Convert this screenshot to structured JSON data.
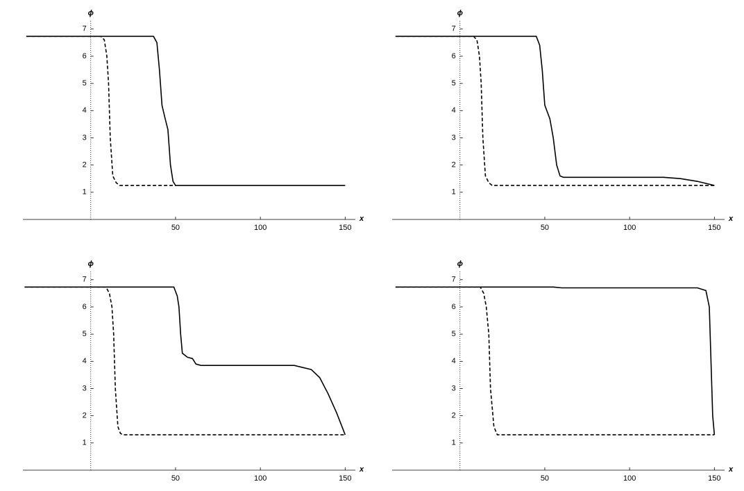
{
  "chart_data": [
    {
      "type": "line",
      "xlabel": "x",
      "ylabel": "ϕ",
      "xlim": [
        -40,
        156
      ],
      "ylim": [
        0,
        7.3
      ],
      "xticks": [
        50,
        100,
        150
      ],
      "yticks": [
        1,
        2,
        3,
        4,
        5,
        6,
        7
      ],
      "series": [
        {
          "color": "#000000",
          "dashed": false,
          "x": [
            -38,
            37,
            39,
            40.5,
            42,
            43.5,
            45.5,
            47,
            48.5,
            50,
            150
          ],
          "values": [
            6.73,
            6.73,
            6.5,
            5.5,
            4.2,
            3.8,
            3.3,
            2.0,
            1.4,
            1.25,
            1.25
          ]
        },
        {
          "color": "#000000",
          "dashed": true,
          "x": [
            -38,
            6,
            8,
            9.5,
            10.5,
            11.5,
            13,
            15,
            17,
            50
          ],
          "values": [
            6.73,
            6.73,
            6.6,
            6.0,
            5.0,
            3.0,
            1.6,
            1.35,
            1.25,
            1.25
          ]
        }
      ]
    },
    {
      "type": "line",
      "xlabel": "x",
      "ylabel": "ϕ",
      "xlim": [
        -40,
        156
      ],
      "ylim": [
        0,
        7.3
      ],
      "xticks": [
        50,
        100,
        150
      ],
      "yticks": [
        1,
        2,
        3,
        4,
        5,
        6,
        7
      ],
      "series": [
        {
          "color": "#000000",
          "dashed": false,
          "x": [
            -38,
            45,
            47,
            48.5,
            50,
            53,
            55,
            57,
            59,
            61,
            120,
            130,
            140,
            150
          ],
          "values": [
            6.73,
            6.73,
            6.4,
            5.5,
            4.2,
            3.7,
            3.0,
            2.0,
            1.6,
            1.55,
            1.55,
            1.5,
            1.4,
            1.25
          ]
        },
        {
          "color": "#000000",
          "dashed": true,
          "x": [
            -38,
            8,
            10,
            11.5,
            12.5,
            13.5,
            15,
            17,
            19,
            150
          ],
          "values": [
            6.73,
            6.73,
            6.6,
            6.0,
            5.0,
            3.0,
            1.6,
            1.35,
            1.25,
            1.25
          ]
        }
      ]
    },
    {
      "type": "line",
      "xlabel": "x",
      "ylabel": "ϕ",
      "xlim": [
        -40,
        156
      ],
      "ylim": [
        0,
        7.3
      ],
      "xticks": [
        50,
        100,
        150
      ],
      "yticks": [
        1,
        2,
        3,
        4,
        5,
        6,
        7
      ],
      "series": [
        {
          "color": "#000000",
          "dashed": false,
          "x": [
            -39,
            49,
            51,
            52,
            53,
            54,
            57,
            60,
            62,
            65,
            120,
            130,
            135,
            140,
            145,
            150
          ],
          "values": [
            6.73,
            6.73,
            6.4,
            6.0,
            5.0,
            4.3,
            4.15,
            4.1,
            3.9,
            3.85,
            3.85,
            3.7,
            3.4,
            2.8,
            2.1,
            1.3
          ]
        },
        {
          "color": "#000000",
          "dashed": true,
          "x": [
            -39,
            9,
            11,
            12.5,
            13.5,
            14.5,
            16,
            17.5,
            19,
            150
          ],
          "values": [
            6.73,
            6.73,
            6.5,
            6.0,
            5.0,
            3.0,
            1.6,
            1.35,
            1.3,
            1.3
          ]
        }
      ]
    },
    {
      "type": "line",
      "xlabel": "x",
      "ylabel": "ϕ",
      "xlim": [
        -40,
        156
      ],
      "ylim": [
        0,
        7.3
      ],
      "xticks": [
        50,
        100,
        150
      ],
      "yticks": [
        1,
        2,
        3,
        4,
        5,
        6,
        7
      ],
      "series": [
        {
          "color": "#000000",
          "dashed": false,
          "x": [
            -38,
            55,
            60,
            140,
            145,
            147,
            148,
            149,
            150
          ],
          "values": [
            6.73,
            6.73,
            6.7,
            6.7,
            6.6,
            6.0,
            4.0,
            2.0,
            1.3
          ]
        },
        {
          "color": "#000000",
          "dashed": true,
          "x": [
            -38,
            12,
            14,
            15.5,
            17,
            18,
            20,
            22,
            150
          ],
          "values": [
            6.73,
            6.73,
            6.5,
            6.0,
            5.0,
            3.0,
            1.6,
            1.3,
            1.3
          ]
        }
      ]
    }
  ]
}
